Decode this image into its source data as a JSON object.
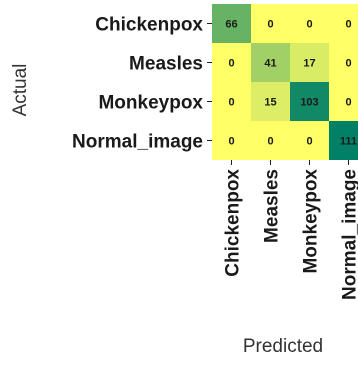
{
  "chart_data": {
    "type": "heatmap",
    "title": "",
    "xlabel": "Predicted",
    "ylabel": "Actual",
    "x_categories": [
      "Chickenpox",
      "Measles",
      "Monkeypox",
      "Normal_image"
    ],
    "y_categories": [
      "Chickenpox",
      "Measles",
      "Monkeypox",
      "Normal_image"
    ],
    "values": [
      [
        66,
        0,
        0,
        0
      ],
      [
        0,
        41,
        17,
        0
      ],
      [
        0,
        15,
        103,
        0
      ],
      [
        0,
        0,
        0,
        111
      ]
    ],
    "colormap": "summer",
    "value_range": [
      0,
      111
    ]
  }
}
